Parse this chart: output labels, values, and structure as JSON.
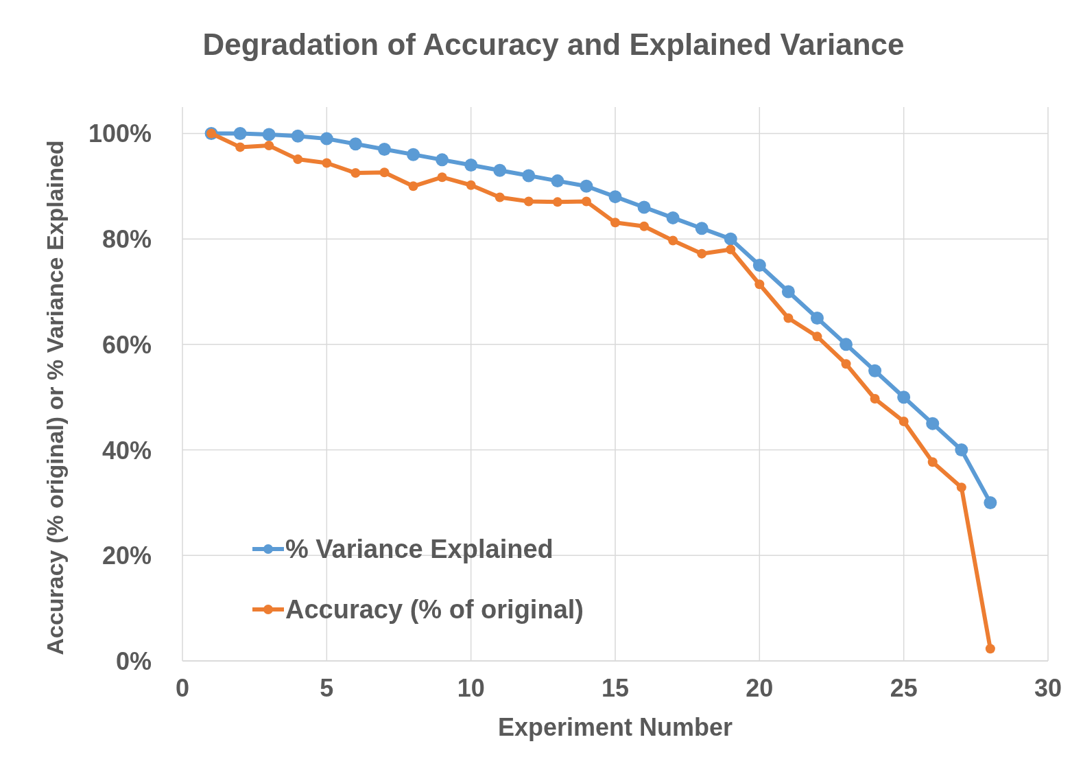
{
  "chart_data": {
    "type": "line",
    "title": "Degradation of Accuracy and Explained Variance",
    "xlabel": "Experiment Number",
    "ylabel": "Accuracy (% original) or % Variance Explained",
    "x": [
      1,
      2,
      3,
      4,
      5,
      6,
      7,
      8,
      9,
      10,
      11,
      12,
      13,
      14,
      15,
      16,
      17,
      18,
      19,
      20,
      21,
      22,
      23,
      24,
      25,
      26,
      27,
      28
    ],
    "series": [
      {
        "name": "% Variance Explained",
        "color": "#5b9bd5",
        "values": [
          100,
          100,
          99.8,
          99.5,
          99,
          98,
          97,
          96,
          95,
          94,
          93,
          92,
          91,
          90,
          88,
          86,
          84,
          82,
          80,
          75,
          70,
          65,
          60,
          55,
          50,
          45,
          40,
          30
        ]
      },
      {
        "name": "Accuracy (% of original)",
        "color": "#ed7d31",
        "values": [
          100,
          97.4,
          97.7,
          95.1,
          94.4,
          92.5,
          92.6,
          90,
          91.7,
          90.2,
          87.9,
          87.1,
          87,
          87.1,
          83.1,
          82.4,
          79.7,
          77.2,
          78,
          71.4,
          65,
          61.5,
          56.3,
          49.7,
          45.4,
          37.7,
          32.9,
          2.3
        ]
      }
    ],
    "xlim": [
      0,
      30
    ],
    "xticks": [
      0,
      5,
      10,
      15,
      20,
      25,
      30
    ],
    "ylim": [
      0,
      105
    ],
    "yticks": [
      {
        "value": 0,
        "label": "0%"
      },
      {
        "value": 20,
        "label": "20%"
      },
      {
        "value": 40,
        "label": "40%"
      },
      {
        "value": 60,
        "label": "60%"
      },
      {
        "value": 80,
        "label": "80%"
      },
      {
        "value": 100,
        "label": "100%"
      }
    ],
    "grid": true,
    "legend": "bottom left",
    "marker": "circle",
    "line_style": "solid"
  }
}
